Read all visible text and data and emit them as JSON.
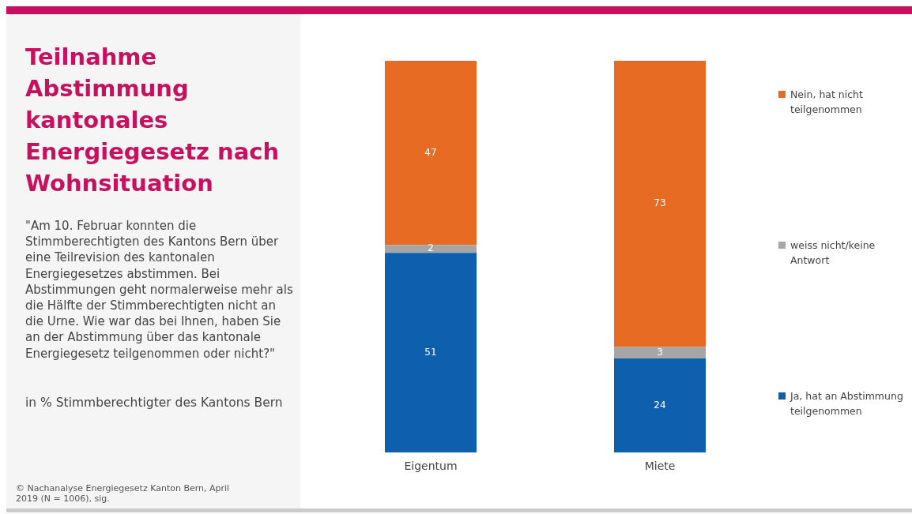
{
  "chart_data": {
    "type": "bar",
    "title": "Teilnahme Abstimmung kantonales Energiegesetz nach Wohnsituation",
    "subtitle": "\"Am 10. Februar konnten die Stimmberechtigten des Kantons Bern über eine Teilrevision des kantonalen Energiegesetzes abstimmen. Bei Abstimmungen geht normalerweise mehr als die Hälfte der Stimmberechtigten nicht an die Urne. Wie war das bei Ihnen, haben Sie an der Abstimmung über das kantonale Energiegesetz teilgenommen oder nicht?\"",
    "annotations": [
      "in % Stimmberechtigter des Kantons Bern",
      "© Nachanalyse Energiegesetz Kanton Bern, April 2019 (N = 1006), sig."
    ],
    "categories": [
      "Eigentum",
      "Miete"
    ],
    "stacked": true,
    "series": [
      {
        "name": "Ja, hat an Abstimmung teilgenommen",
        "color": "#0e5fae",
        "values": [
          51,
          24
        ]
      },
      {
        "name": "weiss nicht/keine Antwort",
        "color": "#a6a6a6",
        "values": [
          2,
          3
        ]
      },
      {
        "name": "Nein, hat nicht teilgenommen",
        "color": "#e86b24",
        "values": [
          47,
          73
        ]
      }
    ],
    "data_labels": true,
    "legend": "right",
    "grid": false
  }
}
